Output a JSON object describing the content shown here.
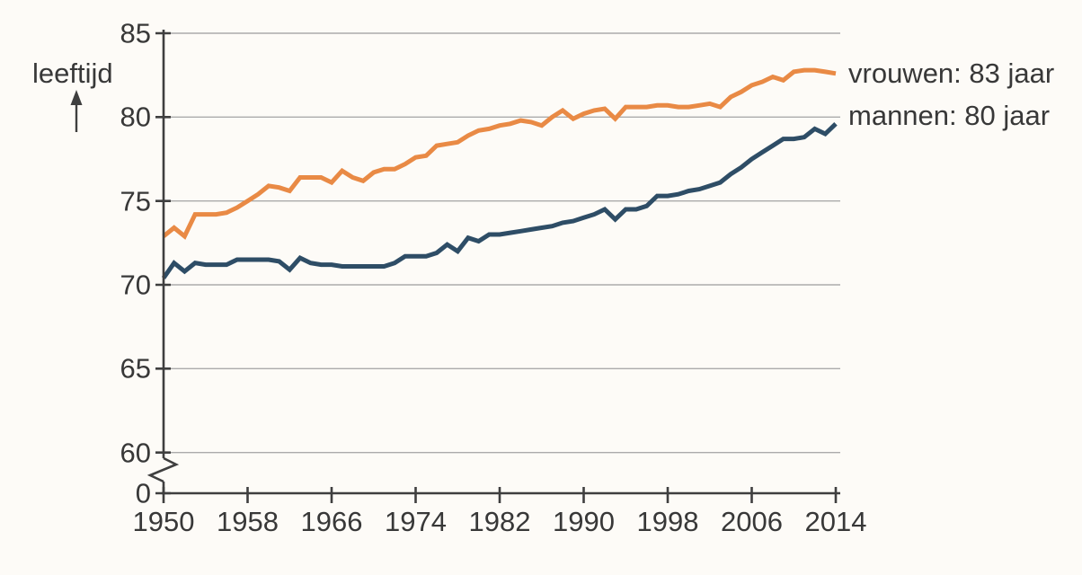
{
  "chart_data": {
    "type": "line",
    "title": "",
    "ylabel": "leeftijd",
    "xlabel": "",
    "grid": "horizontal",
    "legend_position": "right-of-line-ends",
    "y_axis": {
      "max": 85,
      "ticks": [
        85,
        80,
        75,
        70,
        65,
        60
      ],
      "zero_label": "0",
      "axis_break": true,
      "units_per_5": "5 jaar per gridline"
    },
    "x_axis": {
      "start": 1950,
      "end": 2014,
      "ticks": [
        1950,
        1958,
        1966,
        1974,
        1982,
        1990,
        1998,
        2006,
        2014
      ]
    },
    "x": [
      1950,
      1951,
      1952,
      1953,
      1954,
      1955,
      1956,
      1957,
      1958,
      1959,
      1960,
      1961,
      1962,
      1963,
      1964,
      1965,
      1966,
      1967,
      1968,
      1969,
      1970,
      1971,
      1972,
      1973,
      1974,
      1975,
      1976,
      1977,
      1978,
      1979,
      1980,
      1981,
      1982,
      1983,
      1984,
      1985,
      1986,
      1987,
      1988,
      1989,
      1990,
      1991,
      1992,
      1993,
      1994,
      1995,
      1996,
      1997,
      1998,
      1999,
      2000,
      2001,
      2002,
      2003,
      2004,
      2005,
      2006,
      2007,
      2008,
      2009,
      2010,
      2011,
      2012,
      2013,
      2014
    ],
    "series": [
      {
        "name": "vrouwen",
        "label": "vrouwen: 83 jaar",
        "end_value_jaar": 83,
        "color": "#E98A45",
        "values": [
          72.9,
          73.4,
          72.9,
          74.2,
          74.2,
          74.2,
          74.3,
          74.6,
          75.0,
          75.4,
          75.9,
          75.8,
          75.6,
          76.4,
          76.4,
          76.4,
          76.1,
          76.8,
          76.4,
          76.2,
          76.7,
          76.9,
          76.9,
          77.2,
          77.6,
          77.7,
          78.3,
          78.4,
          78.5,
          78.9,
          79.2,
          79.3,
          79.5,
          79.6,
          79.8,
          79.7,
          79.5,
          80.0,
          80.4,
          79.9,
          80.2,
          80.4,
          80.5,
          79.9,
          80.6,
          80.6,
          80.6,
          80.7,
          80.7,
          80.6,
          80.6,
          80.7,
          80.8,
          80.6,
          81.2,
          81.5,
          81.9,
          82.1,
          82.4,
          82.2,
          82.7,
          82.8,
          82.8,
          82.7,
          82.6
        ]
      },
      {
        "name": "mannen",
        "label": "mannen: 80 jaar",
        "end_value_jaar": 80,
        "color": "#2E4D66",
        "values": [
          70.4,
          71.3,
          70.8,
          71.3,
          71.2,
          71.2,
          71.2,
          71.5,
          71.5,
          71.5,
          71.5,
          71.4,
          70.9,
          71.6,
          71.3,
          71.2,
          71.2,
          71.1,
          71.1,
          71.1,
          71.1,
          71.1,
          71.3,
          71.7,
          71.7,
          71.7,
          71.9,
          72.4,
          72.0,
          72.8,
          72.6,
          73.0,
          73.0,
          73.1,
          73.2,
          73.3,
          73.4,
          73.5,
          73.7,
          73.8,
          74.0,
          74.2,
          74.5,
          73.9,
          74.5,
          74.5,
          74.7,
          75.3,
          75.3,
          75.4,
          75.6,
          75.7,
          75.9,
          76.1,
          76.6,
          77.0,
          77.5,
          77.9,
          78.3,
          78.7,
          78.7,
          78.8,
          79.3,
          79.0,
          79.6
        ]
      }
    ],
    "colors": {
      "grid": "#ABABAB",
      "axis": "#3F3F3F",
      "text": "#383838",
      "background": "#FDFBF7"
    }
  }
}
